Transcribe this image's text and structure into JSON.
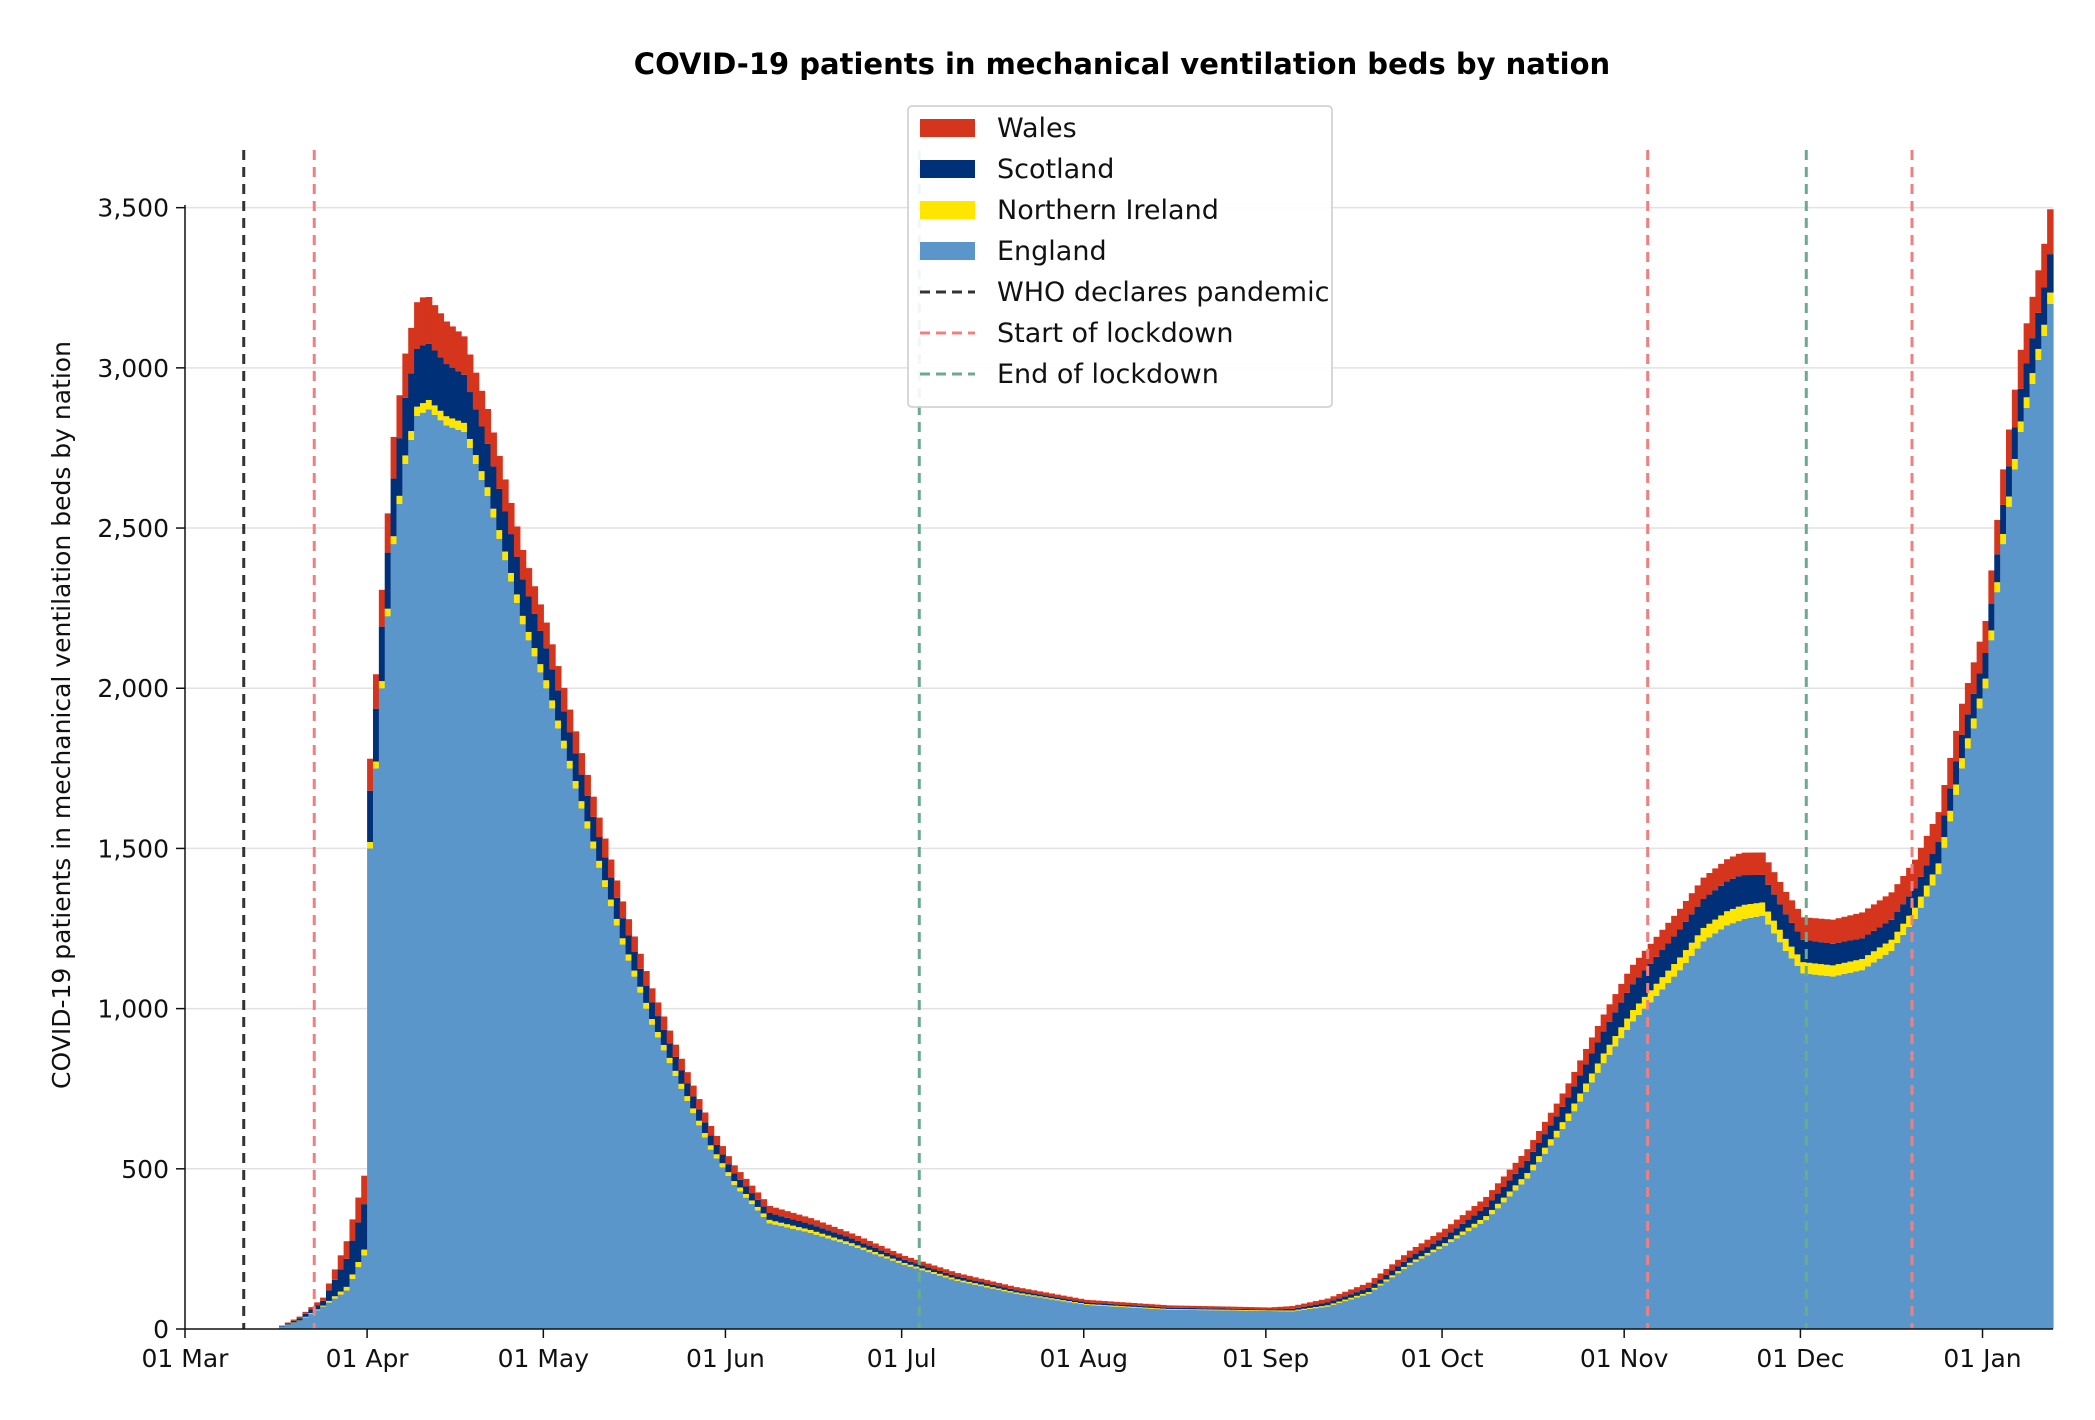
{
  "chart_data": {
    "type": "bar",
    "stacked": true,
    "title": "COVID-19 patients in mechanical ventilation beds by nation",
    "xlabel": "",
    "ylabel": "COVID-19 patients in mechanical ventilation beds by nation",
    "ylim": [
      0,
      3680
    ],
    "yticks": [
      0,
      500,
      1000,
      1500,
      2000,
      2500,
      3000,
      3500
    ],
    "ytick_labels": [
      "0",
      "500",
      "1,000",
      "1,500",
      "2,000",
      "2,500",
      "3,000",
      "3,500"
    ],
    "xlim": [
      "2020-03-01",
      "2021-01-13"
    ],
    "xticks": [
      "2020-03-01",
      "2020-04-01",
      "2020-05-01",
      "2020-06-01",
      "2020-07-01",
      "2020-08-01",
      "2020-09-01",
      "2020-10-01",
      "2020-11-01",
      "2020-12-01",
      "2021-01-01"
    ],
    "xtick_labels": [
      "01 Mar",
      "01 Apr",
      "01 May",
      "01 Jun",
      "01 Jul",
      "01 Aug",
      "01 Sep",
      "01 Oct",
      "01 Nov",
      "01 Dec",
      "01 Jan"
    ],
    "grid": "horizontal",
    "legend_position": "top-center",
    "series": [
      {
        "name": "England",
        "color": "#5a96ca",
        "points": [
          [
            "2020-03-17",
            8
          ],
          [
            "2020-03-20",
            25
          ],
          [
            "2020-03-24",
            70
          ],
          [
            "2020-03-28",
            120
          ],
          [
            "2020-03-31",
            230
          ],
          [
            "2020-04-01",
            1500
          ],
          [
            "2020-04-03",
            2000
          ],
          [
            "2020-04-05",
            2450
          ],
          [
            "2020-04-07",
            2700
          ],
          [
            "2020-04-09",
            2850
          ],
          [
            "2020-04-11",
            2870
          ],
          [
            "2020-04-14",
            2820
          ],
          [
            "2020-04-17",
            2800
          ],
          [
            "2020-04-21",
            2600
          ],
          [
            "2020-04-24",
            2400
          ],
          [
            "2020-04-27",
            2200
          ],
          [
            "2020-05-01",
            2000
          ],
          [
            "2020-05-05",
            1750
          ],
          [
            "2020-05-09",
            1500
          ],
          [
            "2020-05-14",
            1200
          ],
          [
            "2020-05-19",
            950
          ],
          [
            "2020-05-24",
            750
          ],
          [
            "2020-05-29",
            560
          ],
          [
            "2020-06-02",
            450
          ],
          [
            "2020-06-08",
            330
          ],
          [
            "2020-06-15",
            300
          ],
          [
            "2020-06-22",
            260
          ],
          [
            "2020-07-01",
            200
          ],
          [
            "2020-07-10",
            150
          ],
          [
            "2020-07-20",
            110
          ],
          [
            "2020-08-01",
            75
          ],
          [
            "2020-08-15",
            60
          ],
          [
            "2020-08-25",
            58
          ],
          [
            "2020-09-05",
            55
          ],
          [
            "2020-09-11",
            70
          ],
          [
            "2020-09-18",
            110
          ],
          [
            "2020-09-25",
            200
          ],
          [
            "2020-10-01",
            260
          ],
          [
            "2020-10-08",
            340
          ],
          [
            "2020-10-15",
            470
          ],
          [
            "2020-10-22",
            650
          ],
          [
            "2020-10-28",
            830
          ],
          [
            "2020-11-02",
            960
          ],
          [
            "2020-11-06",
            1040
          ],
          [
            "2020-11-10",
            1120
          ],
          [
            "2020-11-14",
            1210
          ],
          [
            "2020-11-18",
            1260
          ],
          [
            "2020-11-21",
            1280
          ],
          [
            "2020-11-24",
            1290
          ],
          [
            "2020-11-28",
            1180
          ],
          [
            "2020-12-01",
            1110
          ],
          [
            "2020-12-06",
            1100
          ],
          [
            "2020-12-11",
            1120
          ],
          [
            "2020-12-16",
            1180
          ],
          [
            "2020-12-20",
            1280
          ],
          [
            "2020-12-24",
            1420
          ],
          [
            "2020-12-28",
            1750
          ],
          [
            "2021-01-01",
            2000
          ],
          [
            "2021-01-04",
            2450
          ],
          [
            "2021-01-07",
            2800
          ],
          [
            "2021-01-09",
            2950
          ],
          [
            "2021-01-11",
            3100
          ],
          [
            "2021-01-12",
            3200
          ]
        ]
      },
      {
        "name": "Northern Ireland",
        "color": "#ffe600",
        "points": [
          [
            "2020-03-17",
            0
          ],
          [
            "2020-03-24",
            3
          ],
          [
            "2020-04-01",
            20
          ],
          [
            "2020-04-10",
            30
          ],
          [
            "2020-05-01",
            25
          ],
          [
            "2020-06-01",
            12
          ],
          [
            "2020-07-01",
            6
          ],
          [
            "2020-08-01",
            3
          ],
          [
            "2020-09-01",
            2
          ],
          [
            "2020-10-01",
            8
          ],
          [
            "2020-10-20",
            20
          ],
          [
            "2020-11-01",
            35
          ],
          [
            "2020-11-20",
            45
          ],
          [
            "2020-12-01",
            35
          ],
          [
            "2020-12-20",
            35
          ],
          [
            "2021-01-01",
            30
          ],
          [
            "2021-01-12",
            35
          ]
        ]
      },
      {
        "name": "Scotland",
        "color": "#003078",
        "points": [
          [
            "2020-03-17",
            2
          ],
          [
            "2020-03-24",
            15
          ],
          [
            "2020-04-01",
            160
          ],
          [
            "2020-04-05",
            180
          ],
          [
            "2020-04-10",
            180
          ],
          [
            "2020-04-17",
            150
          ],
          [
            "2020-05-01",
            100
          ],
          [
            "2020-05-15",
            60
          ],
          [
            "2020-06-01",
            25
          ],
          [
            "2020-07-01",
            10
          ],
          [
            "2020-08-01",
            5
          ],
          [
            "2020-09-01",
            3
          ],
          [
            "2020-10-01",
            20
          ],
          [
            "2020-10-20",
            45
          ],
          [
            "2020-11-01",
            80
          ],
          [
            "2020-11-20",
            95
          ],
          [
            "2020-12-01",
            70
          ],
          [
            "2020-12-20",
            60
          ],
          [
            "2021-01-01",
            80
          ],
          [
            "2021-01-12",
            120
          ]
        ]
      },
      {
        "name": "Wales",
        "color": "#d4351c",
        "points": [
          [
            "2020-03-17",
            1
          ],
          [
            "2020-03-24",
            10
          ],
          [
            "2020-04-01",
            100
          ],
          [
            "2020-04-05",
            130
          ],
          [
            "2020-04-10",
            150
          ],
          [
            "2020-04-17",
            120
          ],
          [
            "2020-05-01",
            80
          ],
          [
            "2020-05-15",
            50
          ],
          [
            "2020-06-01",
            25
          ],
          [
            "2020-07-01",
            12
          ],
          [
            "2020-08-01",
            8
          ],
          [
            "2020-09-01",
            6
          ],
          [
            "2020-10-01",
            25
          ],
          [
            "2020-10-20",
            40
          ],
          [
            "2020-11-01",
            60
          ],
          [
            "2020-11-20",
            70
          ],
          [
            "2020-12-01",
            70
          ],
          [
            "2020-12-20",
            90
          ],
          [
            "2021-01-01",
            100
          ],
          [
            "2021-01-12",
            140
          ]
        ]
      }
    ],
    "vertical_lines": [
      {
        "name": "WHO declares pandemic",
        "date": "2020-03-11",
        "color": "#333333"
      },
      {
        "name": "Start of lockdown",
        "date": "2020-03-23",
        "color": "#f08080"
      },
      {
        "name": "End of lockdown",
        "date": "2020-07-04",
        "color": "#6aab8e"
      },
      {
        "name": "Start of lockdown",
        "date": "2020-11-05",
        "color": "#f08080"
      },
      {
        "name": "End of lockdown",
        "date": "2020-12-02",
        "color": "#6aab8e"
      },
      {
        "name": "Start of lockdown",
        "date": "2020-12-20",
        "color": "#f08080"
      }
    ],
    "legend": [
      {
        "label": "Wales",
        "kind": "patch",
        "color": "#d4351c"
      },
      {
        "label": "Scotland",
        "kind": "patch",
        "color": "#003078"
      },
      {
        "label": "Northern Ireland",
        "kind": "patch",
        "color": "#ffe600"
      },
      {
        "label": "England",
        "kind": "patch",
        "color": "#5a96ca"
      },
      {
        "label": "WHO declares pandemic",
        "kind": "dashed",
        "color": "#333333"
      },
      {
        "label": "Start of lockdown",
        "kind": "dashed",
        "color": "#f08080"
      },
      {
        "label": "End of lockdown",
        "kind": "dashed",
        "color": "#6aab8e"
      }
    ]
  }
}
